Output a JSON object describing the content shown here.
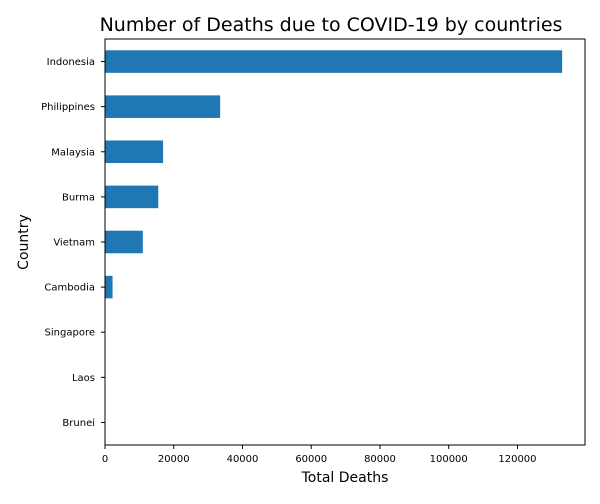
{
  "chart_data": {
    "type": "bar",
    "orientation": "horizontal",
    "title": "Number of Deaths due to COVID-19 by countries",
    "xlabel": "Total Deaths",
    "ylabel": "Country",
    "categories": [
      "Indonesia",
      "Philippines",
      "Malaysia",
      "Burma",
      "Vietnam",
      "Cambodia",
      "Singapore",
      "Laos",
      "Brunei"
    ],
    "values": [
      133000,
      33500,
      16900,
      15500,
      11000,
      2200,
      60,
      20,
      3
    ],
    "xlim": [
      0,
      139650
    ],
    "xticks": [
      0,
      20000,
      40000,
      60000,
      80000,
      100000,
      120000
    ],
    "bar_color": "#1f77b4",
    "grid": false,
    "legend": "none"
  }
}
